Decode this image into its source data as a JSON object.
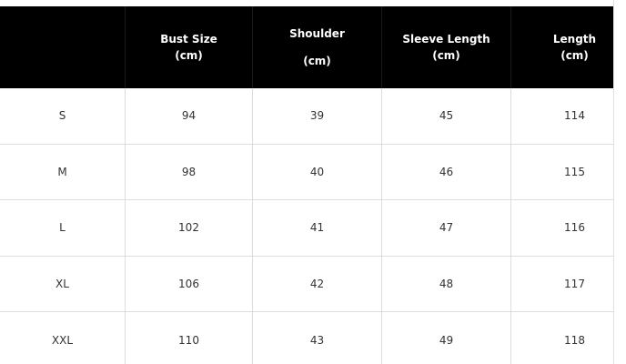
{
  "table": {
    "header": [
      [
        "Bust Size",
        "(cm)"
      ],
      [
        "Shoulder",
        "(cm)"
      ],
      [
        "Sleeve Length",
        "(cm)"
      ],
      [
        "Length",
        "(cm)"
      ]
    ],
    "rows": [
      [
        "S",
        94,
        39,
        45,
        114
      ],
      [
        "M",
        98,
        40,
        46,
        115
      ],
      [
        "L",
        102,
        41,
        47,
        116
      ],
      [
        "XL",
        106,
        42,
        48,
        117
      ],
      [
        "XXL",
        110,
        43,
        49,
        118
      ]
    ]
  }
}
